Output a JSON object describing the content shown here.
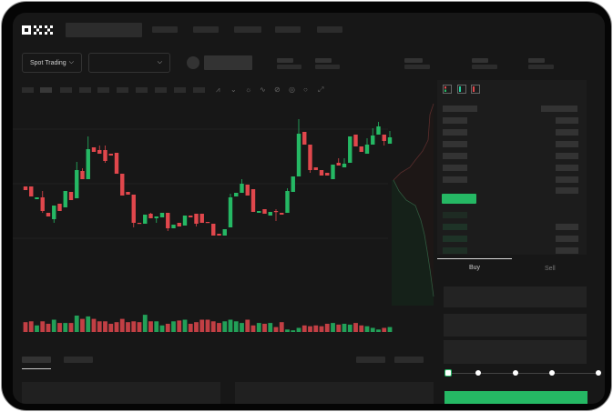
{
  "header": {
    "logo": "OKX"
  },
  "market_bar": {
    "trade_type": "Spot Trading",
    "pair_selector": ""
  },
  "orderbook": {
    "view_icons": [
      "orderbook-both-icon",
      "orderbook-bids-icon",
      "orderbook-asks-icon"
    ]
  },
  "order_form": {
    "tabs": [
      "Buy",
      "Sell"
    ],
    "active_tab": "Buy",
    "slider_percent": 0,
    "slider_stops": [
      0,
      25,
      50,
      75,
      100
    ]
  },
  "colors": {
    "up": "#25b864",
    "down": "#e0474c",
    "background": "#171717",
    "accent": "#25b864"
  },
  "chart_data": {
    "type": "candlestick",
    "candles": [
      [
        97,
        93,
        97,
        93
      ],
      [
        97,
        86,
        97,
        86
      ],
      [
        83,
        85,
        85,
        83
      ],
      [
        85,
        70,
        92,
        68
      ],
      [
        68,
        64,
        68,
        64
      ],
      [
        61,
        76,
        76,
        57
      ],
      [
        78,
        70,
        78,
        70
      ],
      [
        74,
        92,
        92,
        74
      ],
      [
        91,
        82,
        91,
        82
      ],
      [
        84,
        115,
        124,
        84
      ],
      [
        114,
        105,
        117,
        105
      ],
      [
        105,
        138,
        152,
        105
      ],
      [
        140,
        135,
        140,
        135
      ],
      [
        137,
        133,
        142,
        133
      ],
      [
        137,
        125,
        142,
        123
      ],
      [
        133,
        131,
        133,
        131
      ],
      [
        134,
        111,
        134,
        111
      ],
      [
        111,
        87,
        111,
        87
      ],
      [
        91,
        88,
        91,
        88
      ],
      [
        88,
        57,
        88,
        52
      ],
      [
        57,
        56,
        57,
        56
      ],
      [
        56,
        66,
        66,
        56
      ],
      [
        67,
        62,
        68,
        62
      ],
      [
        62,
        64,
        64,
        57
      ],
      [
        63,
        68,
        68,
        63
      ],
      [
        68,
        51,
        68,
        48
      ],
      [
        51,
        55,
        55,
        51
      ],
      [
        57,
        53,
        57,
        53
      ],
      [
        54,
        65,
        65,
        54
      ],
      [
        65,
        63,
        65,
        63
      ],
      [
        67,
        56,
        67,
        53
      ],
      [
        67,
        57,
        67,
        57
      ],
      [
        58,
        57,
        58,
        57
      ],
      [
        56,
        43,
        56,
        43
      ],
      [
        45,
        43,
        45,
        43
      ],
      [
        43,
        50,
        50,
        43
      ],
      [
        52,
        85,
        89,
        52
      ],
      [
        86,
        90,
        90,
        86
      ],
      [
        90,
        100,
        105,
        90
      ],
      [
        99,
        87,
        99,
        87
      ],
      [
        94,
        69,
        94,
        69
      ],
      [
        68,
        70,
        70,
        68
      ],
      [
        72,
        67,
        72,
        67
      ],
      [
        65,
        69,
        69,
        65
      ],
      [
        70,
        69,
        72,
        59
      ],
      [
        68,
        66,
        68,
        66
      ],
      [
        68,
        92,
        95,
        68
      ],
      [
        91,
        108,
        108,
        91
      ],
      [
        108,
        155,
        171,
        108
      ],
      [
        157,
        143,
        157,
        143
      ],
      [
        143,
        115,
        143,
        112
      ],
      [
        118,
        115,
        118,
        115
      ],
      [
        115,
        109,
        115,
        109
      ],
      [
        112,
        109,
        112,
        109
      ],
      [
        105,
        121,
        121,
        105
      ],
      [
        123,
        120,
        128,
        120
      ],
      [
        118,
        122,
        128,
        118
      ],
      [
        123,
        152,
        152,
        123
      ],
      [
        154,
        141,
        154,
        141
      ],
      [
        141,
        135,
        141,
        135
      ],
      [
        133,
        143,
        150,
        133
      ],
      [
        143,
        153,
        161,
        143
      ],
      [
        154,
        163,
        168,
        154
      ],
      [
        154,
        147,
        154,
        142
      ],
      [
        144,
        151,
        158,
        144
      ]
    ],
    "volume": [
      12,
      13,
      8,
      13,
      10,
      15,
      11,
      11,
      11,
      20,
      16,
      19,
      16,
      13,
      13,
      10,
      12,
      16,
      12,
      13,
      12,
      21,
      13,
      13,
      8,
      10,
      13,
      14,
      15,
      10,
      12,
      15,
      15,
      13,
      11,
      13,
      15,
      13,
      11,
      15,
      8,
      11,
      10,
      11,
      6,
      12,
      3,
      2,
      5,
      8,
      7,
      8,
      7,
      10,
      11,
      9,
      10,
      9,
      11,
      8,
      7,
      5,
      3,
      5,
      6
    ],
    "legend": "none",
    "grid": true
  }
}
